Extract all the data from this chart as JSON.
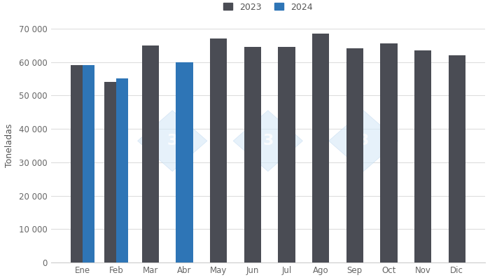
{
  "months": [
    "Ene",
    "Feb",
    "Mar",
    "Abr",
    "May",
    "Jun",
    "Jul",
    "Ago",
    "Sep",
    "Oct",
    "Nov",
    "Dic"
  ],
  "values_2023": [
    59000,
    54000,
    65000,
    null,
    67000,
    64500,
    64500,
    68500,
    64000,
    65500,
    63500,
    62000
  ],
  "values_2024": [
    59000,
    55000,
    null,
    60000,
    null,
    null,
    null,
    null,
    null,
    null,
    null,
    null
  ],
  "color_2023": "#4a4c54",
  "color_2024": "#2e75b6",
  "ylabel": "Toneladas",
  "ylim": [
    0,
    70000
  ],
  "yticks": [
    0,
    10000,
    20000,
    30000,
    40000,
    50000,
    60000,
    70000
  ],
  "legend_2023": "2023",
  "legend_2024": "2024",
  "background_color": "#ffffff",
  "grid_color": "#dddddd"
}
